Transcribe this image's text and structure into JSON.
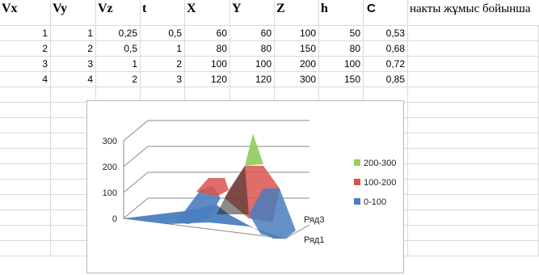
{
  "sheet": {
    "headers": [
      "Vx",
      "Vy",
      "Vz",
      "t",
      "X",
      "Y",
      "Z",
      "h",
      "C"
    ],
    "note": "накты жұмыс бойынша",
    "rows": [
      [
        "1",
        "1",
        "0,25",
        "0,5",
        "60",
        "60",
        "100",
        "50",
        "0,53"
      ],
      [
        "2",
        "2",
        "0,5",
        "1",
        "80",
        "80",
        "150",
        "80",
        "0,68"
      ],
      [
        "3",
        "3",
        "1",
        "2",
        "100",
        "100",
        "200",
        "100",
        "0,72"
      ],
      [
        "4",
        "4",
        "2",
        "3",
        "120",
        "120",
        "300",
        "150",
        "0,85"
      ]
    ]
  },
  "chart_data": {
    "type": "surface-3d",
    "y_ticks": [
      "0",
      "100",
      "200",
      "300"
    ],
    "ylim": [
      0,
      300
    ],
    "series_labels": [
      "Ряд3",
      "Ряд1"
    ],
    "legend": [
      {
        "label": "200-300",
        "color": "#99cc66"
      },
      {
        "label": "100-200",
        "color": "#d9534f"
      },
      {
        "label": "0-100",
        "color": "#4a7ebf"
      }
    ],
    "legend_position": "right",
    "surface_peak": 300,
    "gridlines": true
  }
}
